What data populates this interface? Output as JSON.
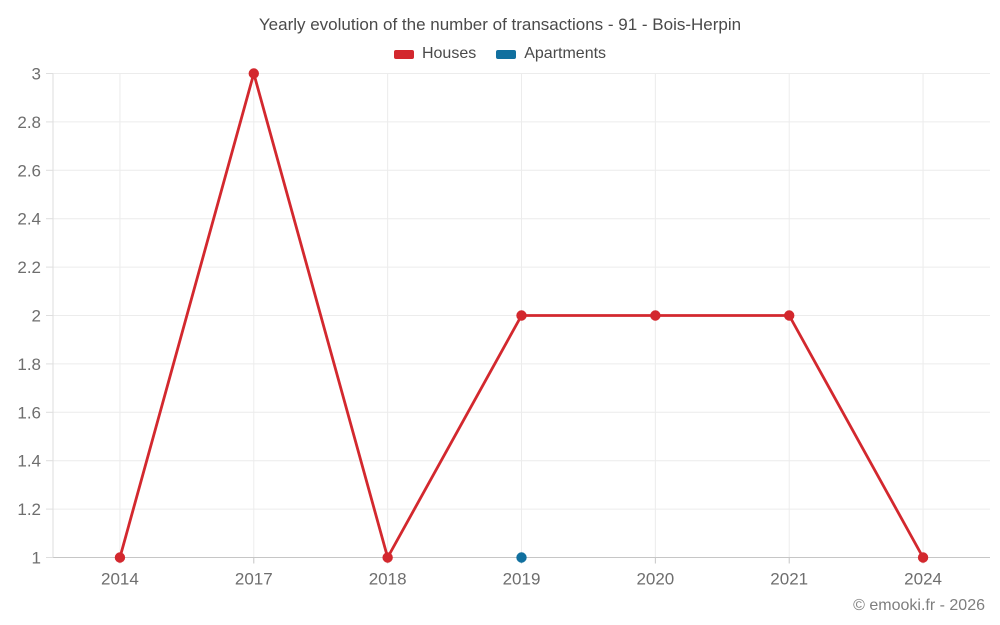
{
  "title": "Yearly evolution of the number of transactions - 91 - Bois-Herpin",
  "legend": {
    "items": [
      {
        "label": "Houses",
        "color": "#d3282e"
      },
      {
        "label": "Apartments",
        "color": "#11709f"
      }
    ]
  },
  "footer": {
    "copyright": "© emooki.fr - 2026"
  },
  "chart_data": {
    "type": "line",
    "title": "Yearly evolution of the number of transactions - 91 - Bois-Herpin",
    "categories": [
      "2014",
      "2017",
      "2018",
      "2019",
      "2020",
      "2021",
      "2024"
    ],
    "series": [
      {
        "name": "Houses",
        "color": "#d3282e",
        "values": [
          1,
          3,
          1,
          2,
          2,
          2,
          1
        ]
      },
      {
        "name": "Apartments",
        "color": "#11709f",
        "values": [
          null,
          null,
          null,
          1,
          null,
          null,
          null
        ]
      }
    ],
    "xlabel": "",
    "ylabel": "",
    "ylim": [
      1,
      3
    ],
    "ytick_step": 0.2,
    "grid": true,
    "legend_position": "top",
    "colors": {
      "grid": "#ececec",
      "axis": "#c6c6c6",
      "y_axis_line": "#dedede",
      "tick_label": "#6e6e6e"
    }
  }
}
